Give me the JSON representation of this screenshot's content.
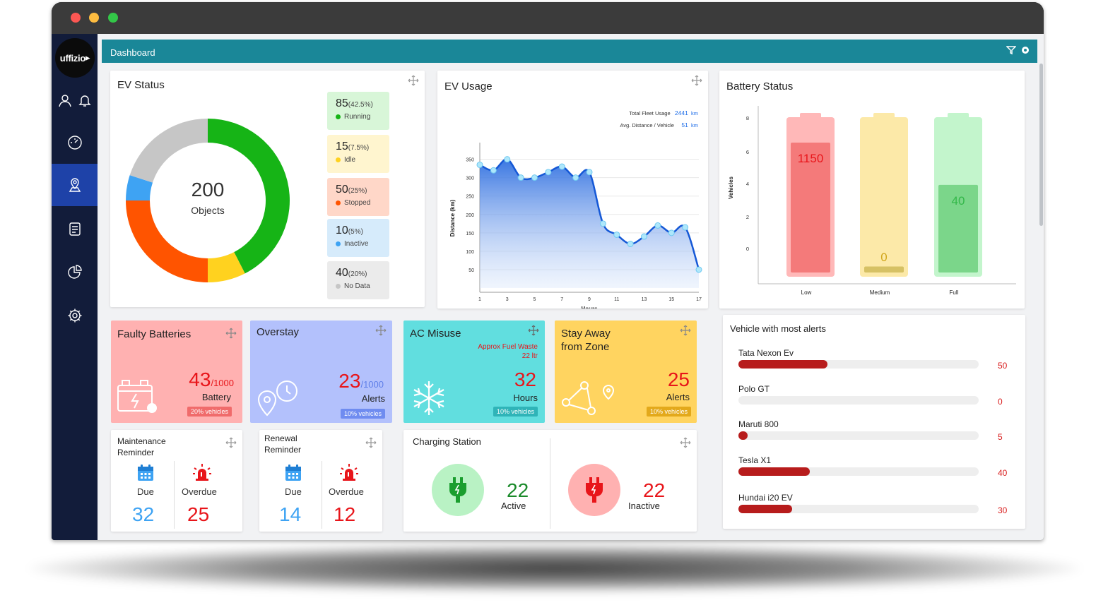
{
  "app": {
    "title": "Dashboard",
    "logo_text": "uffizio"
  },
  "ev_status": {
    "title": "EV Status",
    "total": "200",
    "total_label": "Objects",
    "items": [
      {
        "count": "85",
        "pct": "(42.5%)",
        "label": "Running",
        "value": 85,
        "color": "#16b416",
        "bg": "#d8f6d8"
      },
      {
        "count": "15",
        "pct": "(7.5%)",
        "label": "Idle",
        "value": 15,
        "color": "#ffd21f",
        "bg": "#fff5cf"
      },
      {
        "count": "50",
        "pct": "(25%)",
        "label": "Stopped",
        "value": 50,
        "color": "#ff5400",
        "bg": "#ffd7c8"
      },
      {
        "count": "10",
        "pct": "(5%)",
        "label": "Inactive",
        "value": 10,
        "color": "#3ea3f3",
        "bg": "#d6ebfb"
      },
      {
        "count": "40",
        "pct": "(20%)",
        "label": "No Data",
        "value": 40,
        "color": "#c6c6c6",
        "bg": "#ebebeb"
      }
    ]
  },
  "ev_usage": {
    "title": "EV Usage",
    "total_label": "Total Fleet Usage",
    "total_value": "2441",
    "total_unit": "km",
    "avg_label": "Avg. Distance / Vehicle",
    "avg_value": "51",
    "avg_unit": "km"
  },
  "chart_data": [
    {
      "type": "area",
      "title": "EV Usage",
      "xlabel": "Hours",
      "ylabel": "Distance (km)",
      "x_ticks": [
        "1",
        "3",
        "5",
        "7",
        "9",
        "11",
        "13",
        "15",
        "17"
      ],
      "y_ticks": [
        "50",
        "100",
        "150",
        "200",
        "250",
        "300",
        "350"
      ],
      "ylim": [
        0,
        380
      ],
      "xlim": [
        1,
        17
      ],
      "x": [
        1,
        2,
        3,
        4,
        5,
        6,
        7,
        8,
        9,
        10,
        11,
        12,
        13,
        14,
        15,
        16,
        17
      ],
      "y": [
        335,
        320,
        350,
        300,
        300,
        315,
        330,
        300,
        315,
        175,
        145,
        120,
        140,
        170,
        150,
        165,
        50
      ],
      "grid": true
    },
    {
      "type": "bar",
      "title": "Battery Status",
      "ylabel": "Vehicles",
      "categories": [
        "Low",
        "Medium",
        "Full"
      ],
      "values": [
        1150,
        0,
        40
      ],
      "labels": [
        "1150",
        "0",
        "40"
      ],
      "y_ticks": [
        "0",
        "2",
        "4",
        "6",
        "8"
      ],
      "colors": [
        "#f47a7a",
        "#d6c164",
        "#7bd68a"
      ]
    },
    {
      "type": "bar",
      "title": "Vehicle with most alerts",
      "categories": [
        "Tata Nexon Ev",
        "Polo GT",
        "Maruti 800",
        "Tesla X1",
        "Hundai i20 EV"
      ],
      "values": [
        50,
        0,
        5,
        40,
        30
      ],
      "max": 135
    }
  ],
  "battery_status": {
    "title": "Battery Status"
  },
  "tiles": {
    "faulty": {
      "title": "Faulty Batteries",
      "value": "43",
      "total": "/1000",
      "sub": "Battery",
      "badge": "20% vehicles"
    },
    "overstay": {
      "title": "Overstay",
      "value": "23",
      "total": "/1000",
      "sub": "Alerts",
      "badge": "10% vehicles"
    },
    "ac": {
      "title": "AC Misuse",
      "note1": "Approx Fuel Waste",
      "note2": "22 ltr",
      "value": "32",
      "sub": "Hours",
      "badge": "10% vehicles"
    },
    "zone": {
      "title1": "Stay Away",
      "title2": "from Zone",
      "value": "25",
      "sub": "Alerts",
      "badge": "10% vehicles"
    }
  },
  "maintenance": {
    "title1": "Maintenance",
    "title2": "Reminder",
    "due_label": "Due",
    "overdue_label": "Overdue",
    "due": "32",
    "overdue": "25"
  },
  "renewal": {
    "title1": "Renewal",
    "title2": "Reminder",
    "due_label": "Due",
    "overdue_label": "Overdue",
    "due": "14",
    "overdue": "12"
  },
  "charging": {
    "title": "Charging Station",
    "active": "22",
    "active_label": "Active",
    "inactive": "22",
    "inactive_label": "Inactive"
  },
  "alerts": {
    "title": "Vehicle with most alerts",
    "items": [
      {
        "name": "Tata Nexon Ev",
        "value": "50"
      },
      {
        "name": "Polo GT",
        "value": "0"
      },
      {
        "name": "Maruti 800",
        "value": "5"
      },
      {
        "name": "Tesla X1",
        "value": "40"
      },
      {
        "name": "Hundai i20 EV",
        "value": "30"
      }
    ]
  },
  "icons": [
    "user-icon",
    "bell-icon",
    "speedometer-icon",
    "map-pin-icon",
    "document-icon",
    "pie-chart-icon",
    "gear-icon",
    "filter-icon",
    "settings-icon",
    "move-icon",
    "battery-icon",
    "location-pin-icon",
    "snowflake-icon",
    "zone-route-icon",
    "calendar-icon",
    "siren-icon",
    "plug-icon"
  ]
}
